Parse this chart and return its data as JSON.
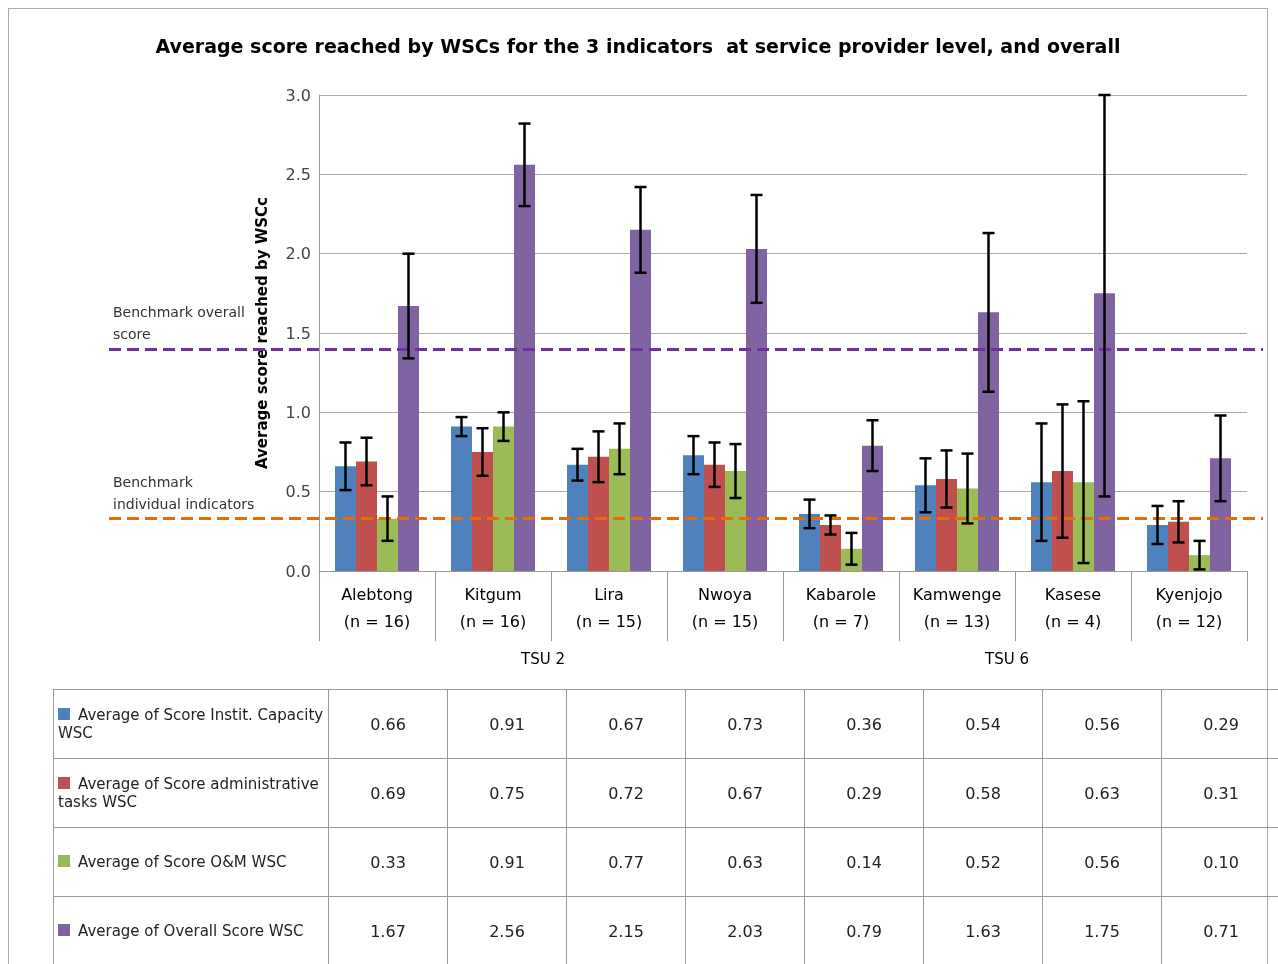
{
  "chart_data": {
    "type": "bar",
    "title": "Average score reached by WSCs for the 3 indicators  at service provider level, and overall",
    "ylabel": "Average score reached by WSCc",
    "categories": [
      "Alebtong\n(n = 16)",
      "Kitgum\n(n = 16)",
      "Lira\n(n = 15)",
      "Nwoya\n(n = 15)",
      "Kabarole\n(n = 7)",
      "Kamwenge\n(n = 13)",
      "Kasese\n(n = 4)",
      "Kyenjojo\n(n = 12)"
    ],
    "series": [
      {
        "name": "Average of Score Instit. Capacity WSC",
        "color": "#4f81bd",
        "values": [
          0.66,
          0.91,
          0.67,
          0.73,
          0.36,
          0.54,
          0.56,
          0.29
        ],
        "errors": [
          0.15,
          0.06,
          0.1,
          0.12,
          0.09,
          0.17,
          0.37,
          0.12
        ]
      },
      {
        "name": "Average of Score administrative tasks WSC",
        "color": "#c0504d",
        "values": [
          0.69,
          0.75,
          0.72,
          0.67,
          0.29,
          0.58,
          0.63,
          0.31
        ],
        "errors": [
          0.15,
          0.15,
          0.16,
          0.14,
          0.06,
          0.18,
          0.42,
          0.13
        ]
      },
      {
        "name": "Average of Score O&M WSC",
        "color": "#9bbb59",
        "values": [
          0.33,
          0.91,
          0.77,
          0.63,
          0.14,
          0.52,
          0.56,
          0.1
        ],
        "value_labels": [
          "0.33",
          "0.91",
          "0.77",
          "0.63",
          "0.14",
          "0.52",
          "0.56",
          "0.10"
        ],
        "errors": [
          0.14,
          0.09,
          0.16,
          0.17,
          0.1,
          0.22,
          0.51,
          0.09
        ]
      },
      {
        "name": "Average of Overall Score WSC",
        "color": "#8064a2",
        "values": [
          1.67,
          2.56,
          2.15,
          2.03,
          0.79,
          1.63,
          1.75,
          0.71
        ],
        "errors": [
          0.33,
          0.26,
          0.27,
          0.34,
          0.16,
          0.5,
          [
            0.47,
            3.0
          ],
          0.27
        ]
      }
    ],
    "data_labels": true,
    "annotations": [
      "TSU 2",
      "TSU 6"
    ],
    "ref_lines": [
      {
        "axis": "y",
        "value": 1.4,
        "label": "Benchmark overall score",
        "color": "#7030a0",
        "line_style": "dashed"
      },
      {
        "axis": "y",
        "value": 0.33,
        "label": "Benchmark individual indicators",
        "color": "#e46c0a",
        "line_style": "dashed"
      }
    ],
    "ylim": [
      0,
      3
    ],
    "yticks": [
      {
        "value": 0,
        "label": "0.0"
      },
      {
        "value": 0.5,
        "label": "0.5"
      },
      {
        "value": 1,
        "label": "1.0"
      },
      {
        "value": 1.5,
        "label": "1.5"
      },
      {
        "value": 2,
        "label": "2.0"
      },
      {
        "value": 2.5,
        "label": "2.5"
      },
      {
        "value": 3,
        "label": "3.0"
      }
    ],
    "grid": "y",
    "legend": "bottom"
  }
}
